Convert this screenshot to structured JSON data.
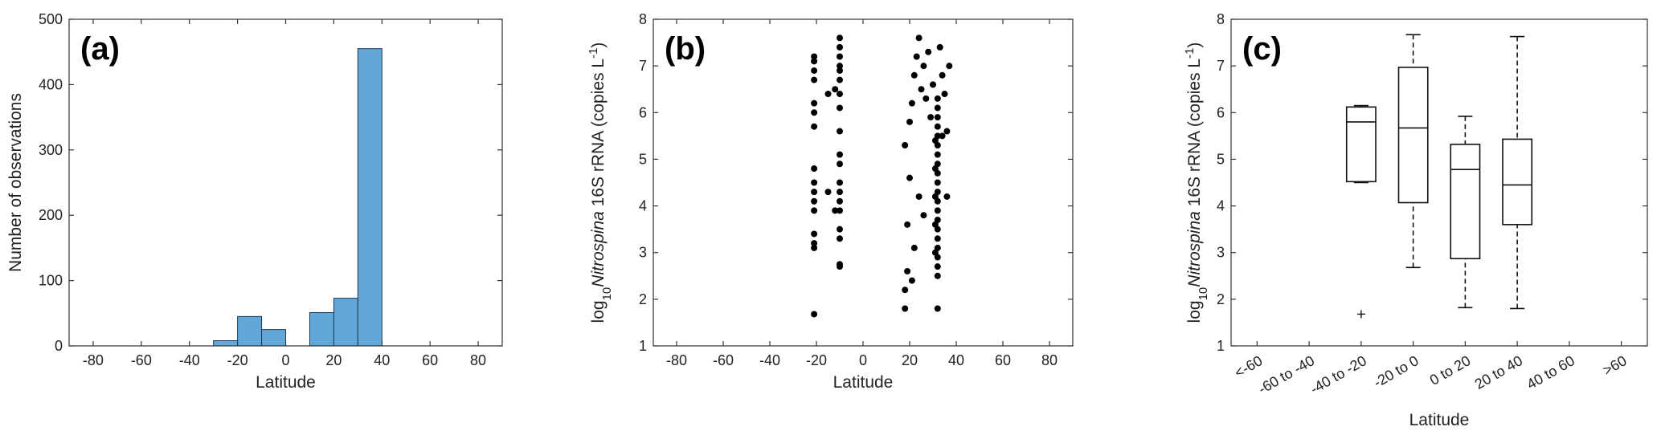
{
  "chart_data": [
    {
      "type": "histogram",
      "panel_label": "(a)",
      "xlabel": "Latitude",
      "ylabel": "Number of observations",
      "bins": [
        -30,
        -20,
        -10,
        0,
        10,
        20,
        30,
        40
      ],
      "counts": [
        8,
        45,
        25,
        0,
        51,
        73,
        455
      ],
      "color": "#61a8d9",
      "edgecolor": "#1f3550",
      "xlim": [
        -90,
        90
      ],
      "xticks": [
        -80,
        -60,
        -40,
        -20,
        0,
        20,
        40,
        60,
        80
      ],
      "ylim": [
        0,
        500
      ],
      "yticks": [
        0,
        100,
        200,
        300,
        400,
        500
      ]
    },
    {
      "type": "scatter",
      "panel_label": "(b)",
      "xlabel": "Latitude",
      "ylabel": [
        "log",
        "10",
        "Nitrospina",
        " 16S rRNA (copies L",
        "-1",
        ")"
      ],
      "color": "#000000",
      "x": [
        -21,
        -21,
        -21,
        -21,
        -21,
        -21,
        -21,
        -21,
        -21,
        -21,
        -21,
        -21,
        -21,
        -21,
        -21,
        -21,
        -15,
        -15,
        -12,
        -12,
        -10,
        -10,
        -10,
        -10,
        -10,
        -10,
        -10,
        -10,
        -10,
        -10,
        -10,
        -10,
        -10,
        -10,
        -10,
        -10,
        -10,
        -10,
        -10,
        18,
        18,
        19,
        19,
        20,
        18,
        20,
        21,
        22,
        23,
        24,
        25,
        26,
        27,
        28,
        29,
        30,
        24,
        22,
        26,
        21,
        34,
        35,
        36,
        37,
        36,
        34,
        33,
        32,
        32,
        32,
        32,
        32,
        32,
        32,
        32,
        32,
        32,
        32,
        32,
        32,
        32,
        32,
        32,
        32,
        32,
        32,
        32,
        32,
        31,
        31,
        31,
        31,
        31
      ],
      "y": [
        1.68,
        3.1,
        3.2,
        3.4,
        3.9,
        4.1,
        4.3,
        4.5,
        4.8,
        5.7,
        6.0,
        6.2,
        6.7,
        6.9,
        7.1,
        7.2,
        4.3,
        6.4,
        6.5,
        3.9,
        2.7,
        2.75,
        3.3,
        3.5,
        3.9,
        4.1,
        4.3,
        4.5,
        4.9,
        5.1,
        5.6,
        6.1,
        6.4,
        6.7,
        6.9,
        7.0,
        7.2,
        7.4,
        7.6,
        1.8,
        2.2,
        2.6,
        3.6,
        4.6,
        5.3,
        5.8,
        6.2,
        6.8,
        7.2,
        7.6,
        6.5,
        7.0,
        6.3,
        7.3,
        5.9,
        6.6,
        4.2,
        3.1,
        3.8,
        2.4,
        6.8,
        6.4,
        5.6,
        7.0,
        4.2,
        5.5,
        7.4,
        1.8,
        2.5,
        2.7,
        2.9,
        3.1,
        3.3,
        3.5,
        3.7,
        3.9,
        4.1,
        4.3,
        4.5,
        4.7,
        4.9,
        5.1,
        5.3,
        5.5,
        5.7,
        5.9,
        6.1,
        6.3,
        3.0,
        3.6,
        4.2,
        4.8,
        5.4
      ],
      "xlim": [
        -90,
        90
      ],
      "xticks": [
        -80,
        -60,
        -40,
        -20,
        0,
        20,
        40,
        60,
        80
      ],
      "ylim": [
        1,
        8
      ],
      "yticks": [
        1,
        2,
        3,
        4,
        5,
        6,
        7,
        8
      ]
    },
    {
      "type": "box",
      "panel_label": "(c)",
      "xlabel": "Latitude",
      "ylabel": [
        "log",
        "10",
        "Nitrospina",
        " 16S rRNA (copies L",
        "-1",
        ")"
      ],
      "categories": [
        "<-60",
        "-60 to -40",
        "-40 to -20",
        "-20 to 0",
        "0 to 20",
        "20 to 40",
        "40 to 60",
        ">60"
      ],
      "boxes": [
        null,
        null,
        {
          "whislo": 4.5,
          "q1": 4.52,
          "med": 5.8,
          "q3": 6.12,
          "whishi": 6.15
        },
        {
          "whislo": 2.68,
          "q1": 4.07,
          "med": 5.67,
          "q3": 6.97,
          "whishi": 7.67
        },
        {
          "whislo": 1.82,
          "q1": 2.87,
          "med": 4.78,
          "q3": 5.32,
          "whishi": 5.92
        },
        {
          "whislo": 1.8,
          "q1": 3.6,
          "med": 4.45,
          "q3": 5.43,
          "whishi": 7.63
        },
        null,
        null
      ],
      "outliers": [
        [],
        [],
        [
          1.68
        ],
        [],
        [],
        [],
        [],
        []
      ],
      "ylim": [
        1,
        8
      ],
      "yticks": [
        1,
        2,
        3,
        4,
        5,
        6,
        7,
        8
      ]
    }
  ]
}
